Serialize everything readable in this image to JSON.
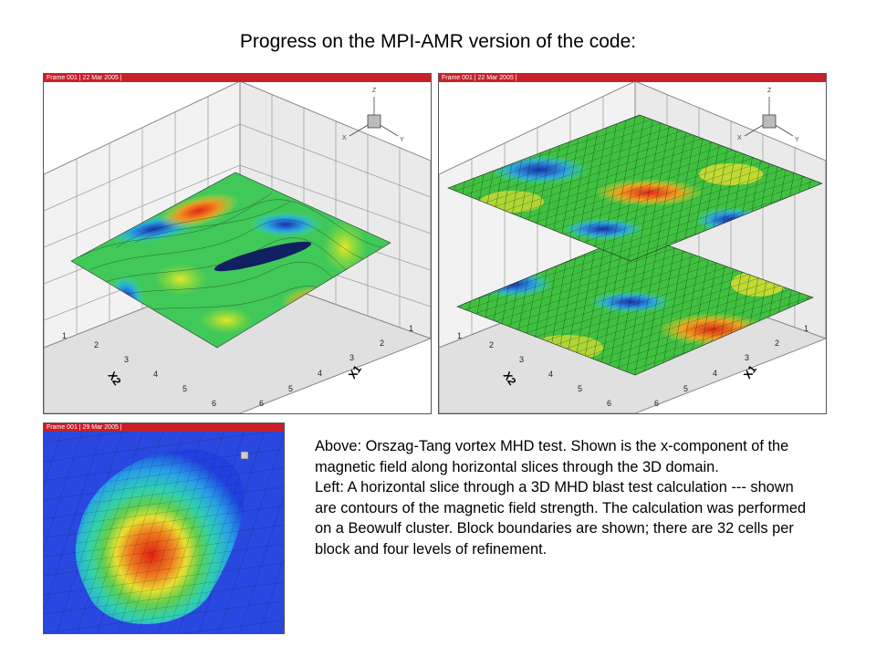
{
  "slide": {
    "title": "Progress on the MPI-AMR version of the code:"
  },
  "panels": {
    "left": {
      "frame_label": "Frame 001 | 22 Mar 2005 |",
      "axis_x1": "X1",
      "axis_x2": "X2",
      "ticks_x1": [
        "1",
        "2",
        "3",
        "4",
        "5",
        "6"
      ],
      "ticks_x2": [
        "1",
        "2",
        "3",
        "4",
        "5",
        "6"
      ],
      "triad": {
        "z": "Z",
        "x": "X",
        "y": "Y"
      }
    },
    "right": {
      "frame_label": "Frame 001 | 22 Mar 2005 |",
      "axis_x1": "X1",
      "axis_x2": "X2",
      "ticks_x1": [
        "1",
        "2",
        "3",
        "4",
        "5",
        "6"
      ],
      "ticks_x2": [
        "1",
        "2",
        "3",
        "4",
        "5",
        "6"
      ],
      "triad": {
        "z": "Z",
        "x": "X",
        "y": "Y"
      }
    },
    "bottom": {
      "frame_label": "Frame 001 | 29 Mar 2005 |"
    }
  },
  "caption": {
    "above": "Above: Orszag-Tang vortex MHD test.  Shown is the x-component of the magnetic field along horizontal slices through the 3D domain.",
    "left": "Left: A horizontal slice through a 3D MHD blast test calculation --- shown are contours of the magnetic field strength.  The calculation was performed on a Beowulf cluster.  Block boundaries are shown; there are 32 cells per block and four levels of refinement."
  },
  "colors": {
    "frame_bar": "#c8202a",
    "field_green": "#38c858",
    "field_blue": "#2038c8",
    "field_red": "#e03020",
    "field_yellow": "#e0e020"
  }
}
